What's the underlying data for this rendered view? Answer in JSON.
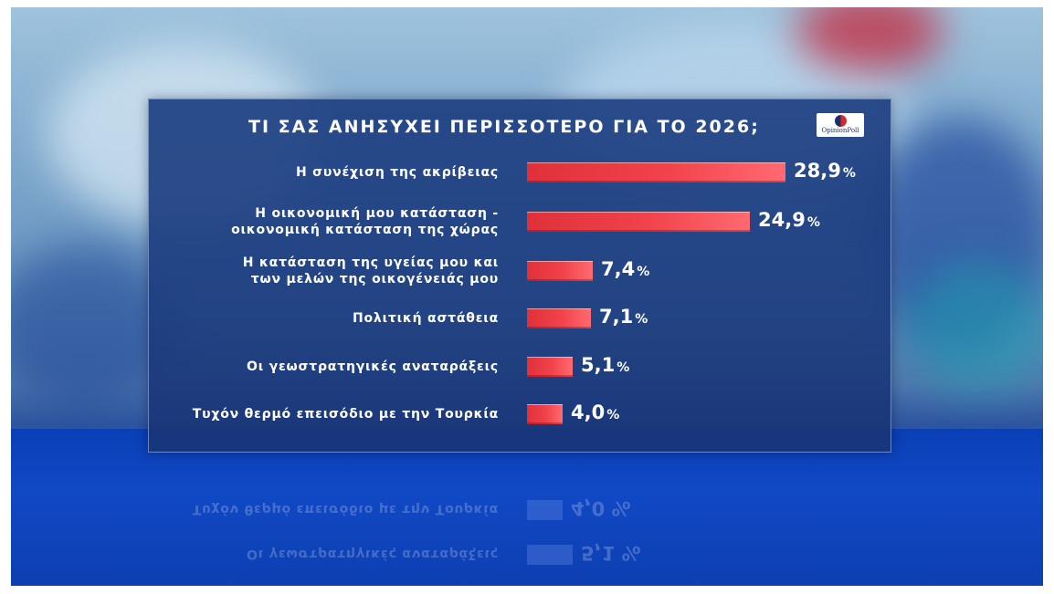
{
  "chart_data": {
    "type": "bar",
    "orientation": "horizontal",
    "title": "ΤΙ ΣΑΣ ΑΝΗΣΥΧΕΙ ΠΕΡΙΣΣΟΤΕΡΟ ΓΙΑ ΤΟ 2026;",
    "categories": [
      "Η συνέχιση της ακρίβειας",
      "Η οικονομική μου κατάσταση -\nοικονομική κατάσταση της χώρας",
      "Η κατάσταση της υγείας μου και\nτων μελών της οικογένειάς μου",
      "Πολιτική αστάθεια",
      "Οι γεωστρατηγικές αναταράξεις",
      "Τυχόν θερμό επεισόδιο με την Τουρκία"
    ],
    "values": [
      28.9,
      24.9,
      7.4,
      7.1,
      5.1,
      4.0
    ],
    "value_labels": [
      "28,9",
      "24,9",
      "7,4",
      "7,1",
      "5,1",
      "4,0"
    ],
    "unit": "%",
    "xlim": [
      0,
      30
    ],
    "bar_color": "#f2434c",
    "grid": false
  },
  "logo": {
    "text": "OpinionPoll",
    "colors": [
      "#1d2f6b",
      "#d42a2a"
    ]
  },
  "reflection": {
    "labels": [
      "Τυχόν θερμό επεισόδιο με την Τουρκία",
      "Οι γεωστρατηγικές αναταράξεις"
    ],
    "value_labels": [
      "4,0",
      "5,1"
    ],
    "values": [
      4.0,
      5.1
    ]
  }
}
